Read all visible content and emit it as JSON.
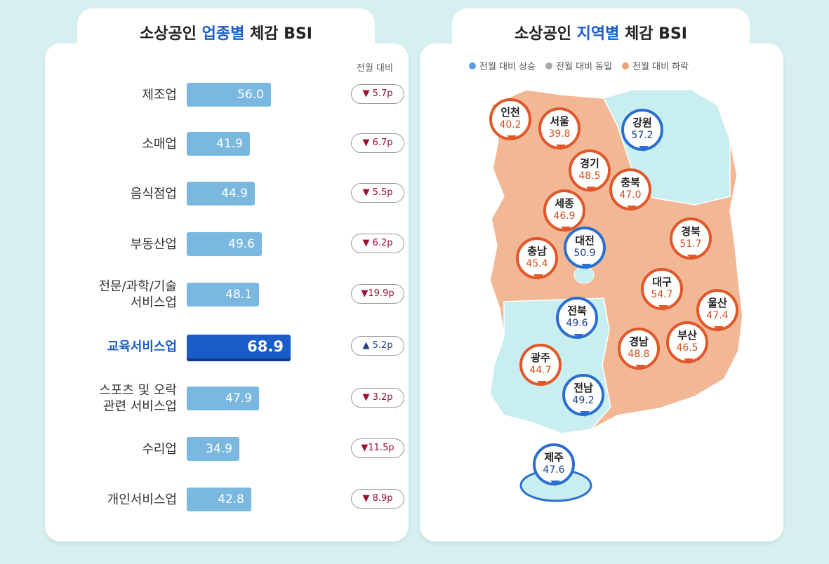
{
  "left": {
    "title_pre": "소상공인 ",
    "title_hl": "업종별",
    "title_post": " 체감 BSI",
    "column_header": "전월 대비"
  },
  "right": {
    "title_pre": "소상공인 ",
    "title_hl": "지역별",
    "title_post": " 체감 BSI",
    "legend": [
      {
        "label": "전월 대비 상승",
        "color": "#5a9fe0"
      },
      {
        "label": "전월 대비 동일",
        "color": "#aaaaaa"
      },
      {
        "label": "전월 대비 하락",
        "color": "#f0a070"
      }
    ]
  },
  "colors": {
    "accent": "#1a5cc8",
    "bar": "#7ab8e0",
    "down": "#e0582a",
    "up": "#2a6fd0",
    "land": "#f2b896",
    "land_up": "#c8eef0"
  },
  "chart_data": [
    {
      "type": "bar",
      "title": "소상공인 업종별 체감 BSI",
      "orientation": "horizontal",
      "categories": [
        "제조업",
        "소매업",
        "음식점업",
        "부동산업",
        "전문/과학/기술\n서비스업",
        "교육서비스업",
        "스포츠 및 오락\n관련 서비스업",
        "수리업",
        "개인서비스업"
      ],
      "values": [
        56.0,
        41.9,
        44.9,
        49.6,
        48.1,
        68.9,
        47.9,
        34.9,
        42.8
      ],
      "change_labels": [
        "▼ 5.7p",
        "▼ 6.7p",
        "▼ 5.5p",
        "▼ 6.2p",
        "▼19.9p",
        "▲ 5.2p",
        "▼ 3.2p",
        "▼11.5p",
        "▼ 8.9p"
      ],
      "change": [
        -5.7,
        -6.7,
        -5.5,
        -6.2,
        -19.9,
        5.2,
        -3.2,
        -11.5,
        -8.9
      ],
      "value_labels": [
        "56.0",
        "41.9",
        "44.9",
        "49.6",
        "48.1",
        "68.9",
        "47.9",
        "34.9",
        "42.8"
      ],
      "highlight": "교육서비스업"
    },
    {
      "type": "map",
      "title": "소상공인 지역별 체감 BSI",
      "regions": [
        {
          "name": "인천",
          "value": "40.2",
          "trend": "down"
        },
        {
          "name": "서울",
          "value": "39.8",
          "trend": "down"
        },
        {
          "name": "강원",
          "value": "57.2",
          "trend": "up"
        },
        {
          "name": "경기",
          "value": "48.5",
          "trend": "down"
        },
        {
          "name": "충북",
          "value": "47.0",
          "trend": "down"
        },
        {
          "name": "세종",
          "value": "46.9",
          "trend": "down"
        },
        {
          "name": "경북",
          "value": "51.7",
          "trend": "down"
        },
        {
          "name": "대전",
          "value": "50.9",
          "trend": "up"
        },
        {
          "name": "충남",
          "value": "45.4",
          "trend": "down"
        },
        {
          "name": "대구",
          "value": "54.7",
          "trend": "down"
        },
        {
          "name": "울산",
          "value": "47.4",
          "trend": "down"
        },
        {
          "name": "전북",
          "value": "49.6",
          "trend": "up"
        },
        {
          "name": "광주",
          "value": "44.7",
          "trend": "down"
        },
        {
          "name": "경남",
          "value": "48.8",
          "trend": "down"
        },
        {
          "name": "부산",
          "value": "46.5",
          "trend": "down"
        },
        {
          "name": "전남",
          "value": "49.2",
          "trend": "up"
        },
        {
          "name": "제주",
          "value": "47.6",
          "trend": "up"
        }
      ]
    }
  ]
}
